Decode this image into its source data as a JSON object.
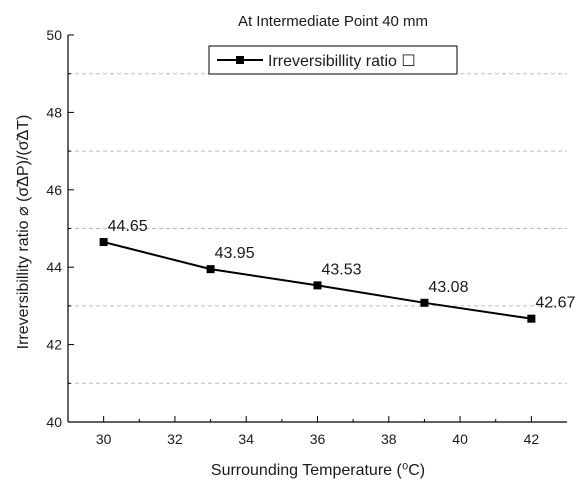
{
  "chart_data": {
    "type": "line",
    "title": "At Intermediate Point 40 mm",
    "xlabel": "Surrounding Temperature (⁰C)",
    "ylabel": "Irreversibillity ratio ⌀ (σ̃ΔP)/(σ̃ΔT)",
    "xlim": [
      29,
      43
    ],
    "ylim": [
      40,
      50
    ],
    "x_ticks": [
      30,
      32,
      34,
      36,
      38,
      40,
      42
    ],
    "y_ticks": [
      40,
      42,
      44,
      46,
      48,
      50
    ],
    "grid": "horizontal-dashed",
    "legend_position": "top-center",
    "series": [
      {
        "name": "Irreversibillity ratio ☐",
        "x": [
          30,
          33,
          36,
          39,
          42
        ],
        "y": [
          44.65,
          43.95,
          43.53,
          43.08,
          42.67
        ],
        "labels": [
          "44.65",
          "43.95",
          "43.53",
          "43.08",
          "42.67"
        ],
        "color": "#000000",
        "marker": "square"
      }
    ]
  }
}
